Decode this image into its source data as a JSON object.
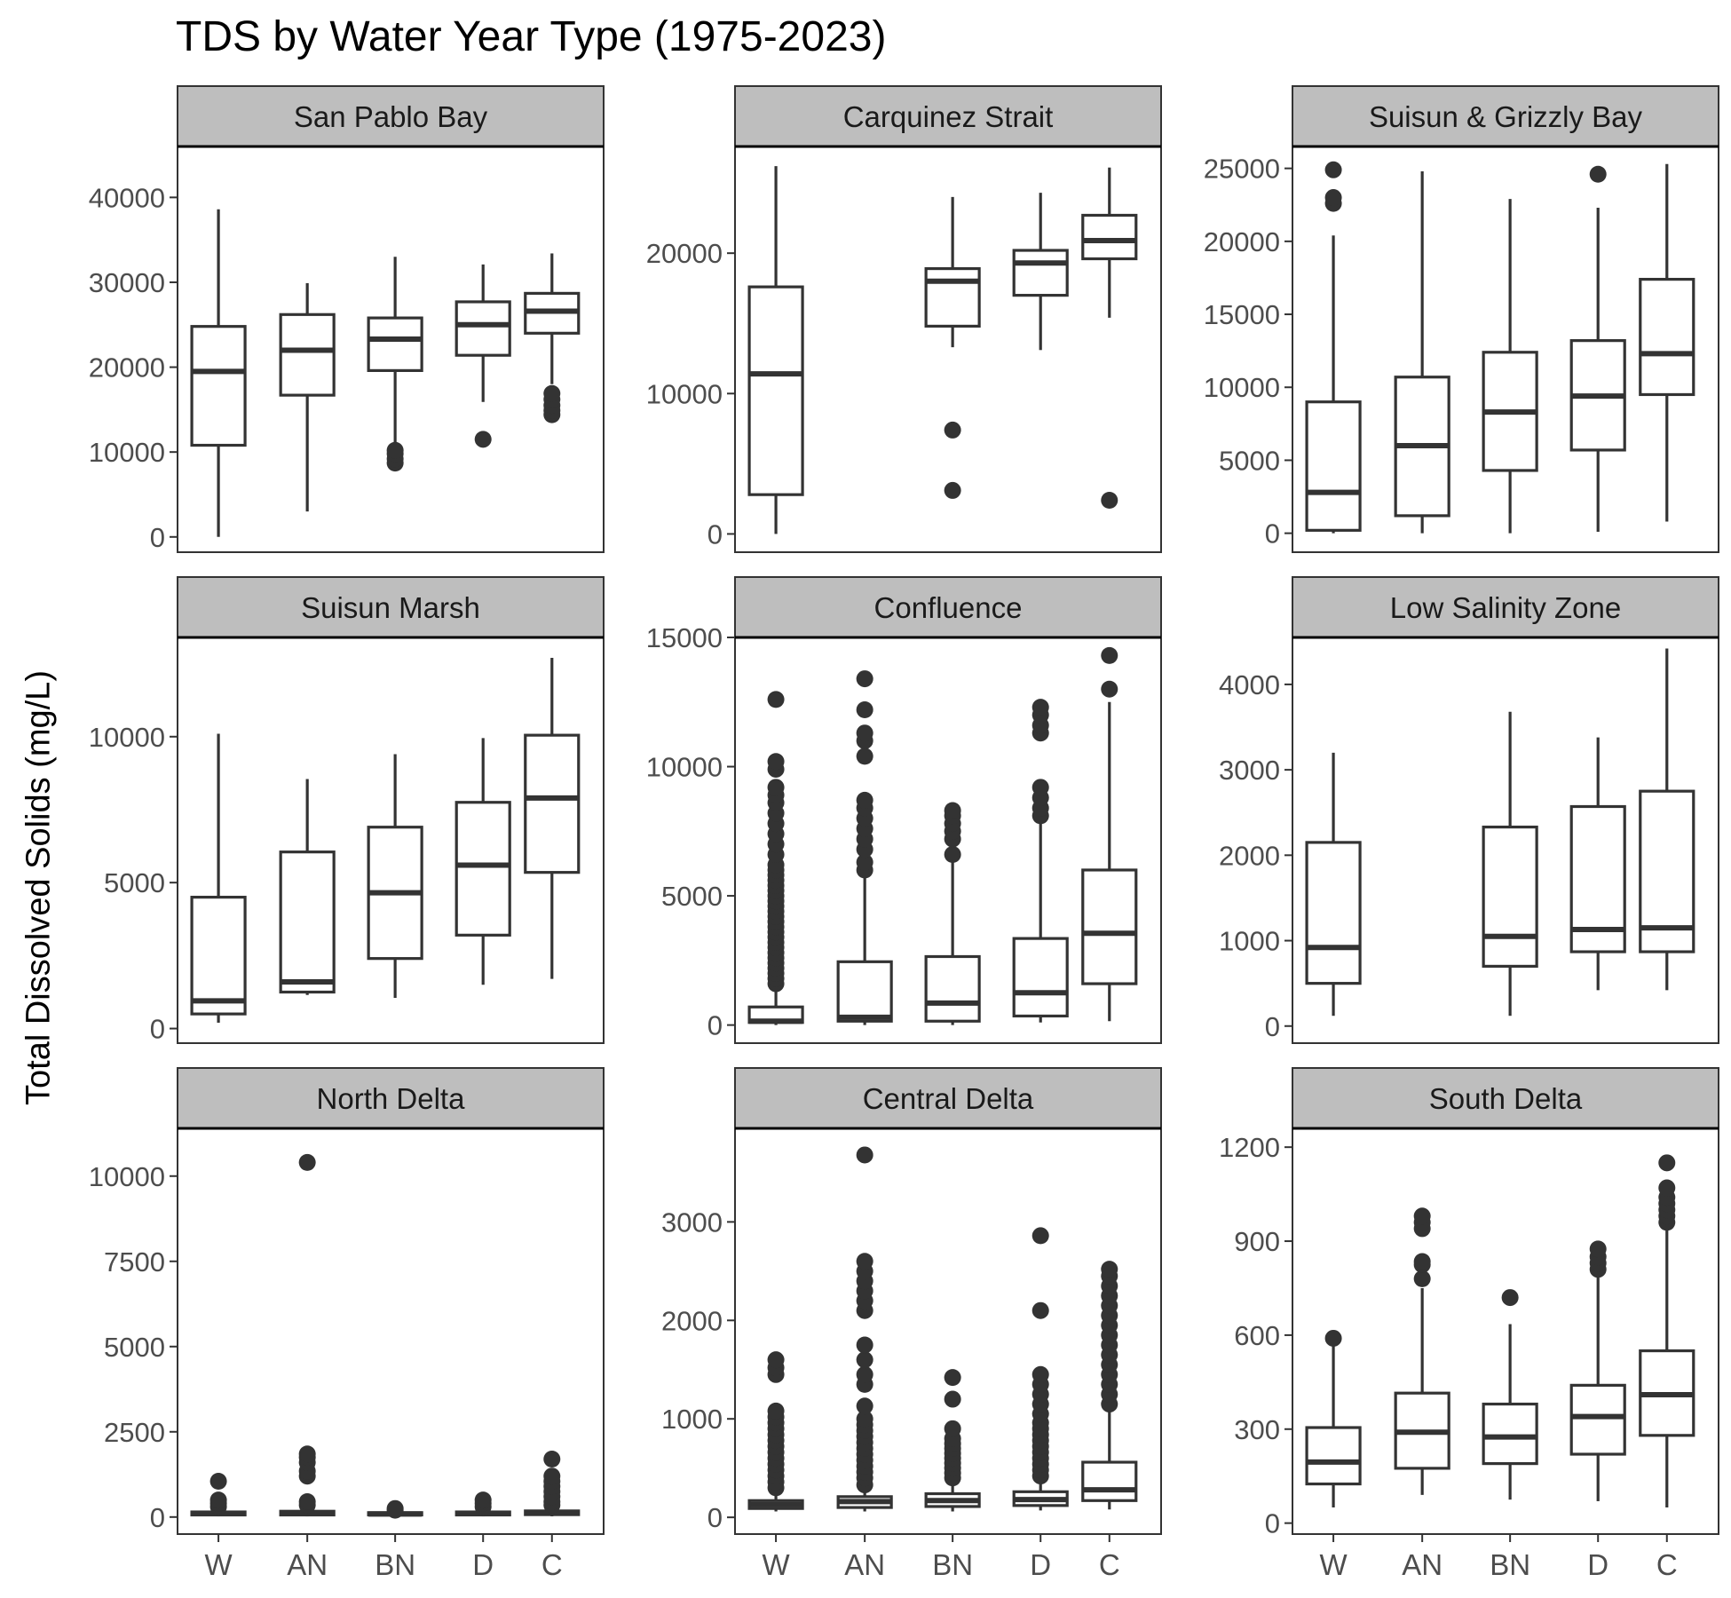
{
  "chart_data": {
    "type": "box",
    "title": "TDS by Water Year Type (1975-2023)",
    "ylabel": "Total Dissolved Solids (mg/L)",
    "xlabel": "",
    "categories": [
      "W",
      "AN",
      "BN",
      "D",
      "C"
    ],
    "grid": false,
    "panels": [
      {
        "name": "San Pablo Bay",
        "ylim": [
          -1800,
          46000
        ],
        "yticks": [
          0,
          10000,
          20000,
          30000,
          40000
        ],
        "ytick_labels": [
          "0",
          "10000",
          "20000",
          "30000",
          "40000"
        ],
        "boxes": [
          {
            "category": "W",
            "min": 0,
            "q1": 10800,
            "median": 19500,
            "q3": 24800,
            "max": 38600,
            "outliers": []
          },
          {
            "category": "AN",
            "min": 3000,
            "q1": 16700,
            "median": 22000,
            "q3": 26200,
            "max": 29900,
            "outliers": []
          },
          {
            "category": "BN",
            "min": 11000,
            "q1": 19600,
            "median": 23300,
            "q3": 25800,
            "max": 33000,
            "outliers": [
              8700,
              9200,
              9800,
              10200
            ]
          },
          {
            "category": "D",
            "min": 15900,
            "q1": 21400,
            "median": 25000,
            "q3": 27700,
            "max": 32100,
            "outliers": [
              11500
            ]
          },
          {
            "category": "C",
            "min": 18000,
            "q1": 24000,
            "median": 26600,
            "q3": 28700,
            "max": 33400,
            "outliers": [
              14400,
              14900,
              15500,
              16200,
              16900
            ]
          }
        ]
      },
      {
        "name": "Carquinez Strait",
        "ylim": [
          -1300,
          27600
        ],
        "yticks": [
          0,
          10000,
          20000
        ],
        "ytick_labels": [
          "0",
          "10000",
          "20000"
        ],
        "boxes": [
          {
            "category": "W",
            "min": 0,
            "q1": 2800,
            "median": 11400,
            "q3": 17600,
            "max": 26200,
            "outliers": []
          },
          {
            "category": "BN",
            "min": 13300,
            "q1": 14800,
            "median": 18000,
            "q3": 18900,
            "max": 24000,
            "outliers": [
              3100,
              7400
            ]
          },
          {
            "category": "D",
            "min": 13100,
            "q1": 17000,
            "median": 19300,
            "q3": 20200,
            "max": 24300,
            "outliers": []
          },
          {
            "category": "C",
            "min": 15400,
            "q1": 19600,
            "median": 20900,
            "q3": 22700,
            "max": 26100,
            "outliers": [
              2400
            ]
          }
        ]
      },
      {
        "name": "Suisun & Grizzly Bay",
        "ylim": [
          -1300,
          26500
        ],
        "yticks": [
          0,
          5000,
          10000,
          15000,
          20000,
          25000
        ],
        "ytick_labels": [
          "0",
          "5000",
          "10000",
          "15000",
          "20000",
          "25000"
        ],
        "boxes": [
          {
            "category": "W",
            "min": 0,
            "q1": 200,
            "median": 2800,
            "q3": 9000,
            "max": 20400,
            "outliers": [
              22600,
              23000,
              24900
            ]
          },
          {
            "category": "AN",
            "min": 0,
            "q1": 1200,
            "median": 6000,
            "q3": 10700,
            "max": 24800,
            "outliers": []
          },
          {
            "category": "BN",
            "min": 0,
            "q1": 4300,
            "median": 8300,
            "q3": 12400,
            "max": 22900,
            "outliers": []
          },
          {
            "category": "D",
            "min": 100,
            "q1": 5700,
            "median": 9400,
            "q3": 13200,
            "max": 22300,
            "outliers": [
              24600
            ]
          },
          {
            "category": "C",
            "min": 800,
            "q1": 9500,
            "median": 12300,
            "q3": 17400,
            "max": 25300,
            "outliers": []
          }
        ]
      },
      {
        "name": "Suisun Marsh",
        "ylim": [
          -500,
          13400
        ],
        "yticks": [
          0,
          5000,
          10000
        ],
        "ytick_labels": [
          "0",
          "5000",
          "10000"
        ],
        "boxes": [
          {
            "category": "W",
            "min": 200,
            "q1": 500,
            "median": 950,
            "q3": 4500,
            "max": 10100,
            "outliers": []
          },
          {
            "category": "AN",
            "min": 1150,
            "q1": 1250,
            "median": 1600,
            "q3": 6050,
            "max": 8550,
            "outliers": []
          },
          {
            "category": "BN",
            "min": 1050,
            "q1": 2400,
            "median": 4650,
            "q3": 6900,
            "max": 9400,
            "outliers": []
          },
          {
            "category": "D",
            "min": 1500,
            "q1": 3200,
            "median": 5600,
            "q3": 7750,
            "max": 9950,
            "outliers": []
          },
          {
            "category": "C",
            "min": 1700,
            "q1": 5350,
            "median": 7900,
            "q3": 10050,
            "max": 12700,
            "outliers": []
          }
        ]
      },
      {
        "name": "Confluence",
        "ylim": [
          -700,
          15000
        ],
        "yticks": [
          0,
          5000,
          10000,
          15000
        ],
        "ytick_labels": [
          "0",
          "5000",
          "10000",
          "15000"
        ],
        "boxes": [
          {
            "category": "W",
            "min": 0,
            "q1": 100,
            "median": 150,
            "q3": 700,
            "max": 1500,
            "outliers": [
              1600,
              1800,
              2000,
              2200,
              2400,
              2600,
              2800,
              3000,
              3200,
              3400,
              3600,
              3800,
              4000,
              4200,
              4400,
              4600,
              4800,
              5000,
              5200,
              5400,
              5600,
              5800,
              6000,
              6200,
              6600,
              7000,
              7400,
              7800,
              8200,
              8600,
              8900,
              9200,
              9900,
              10200,
              12600
            ]
          },
          {
            "category": "AN",
            "min": 0,
            "q1": 150,
            "median": 300,
            "q3": 2450,
            "max": 5800,
            "outliers": [
              6000,
              6300,
              6800,
              7200,
              7600,
              8000,
              8400,
              8700,
              10400,
              11000,
              11300,
              12200,
              13400
            ]
          },
          {
            "category": "BN",
            "min": 0,
            "q1": 150,
            "median": 850,
            "q3": 2650,
            "max": 6500,
            "outliers": [
              6600,
              7200,
              7500,
              7800,
              8100,
              8300
            ]
          },
          {
            "category": "D",
            "min": 100,
            "q1": 350,
            "median": 1250,
            "q3": 3350,
            "max": 7900,
            "outliers": [
              8100,
              8400,
              8800,
              9200,
              11300,
              11600,
              12000,
              12300
            ]
          },
          {
            "category": "C",
            "min": 150,
            "q1": 1600,
            "median": 3550,
            "q3": 6000,
            "max": 12500,
            "outliers": [
              13000,
              14300
            ]
          }
        ]
      },
      {
        "name": "Low Salinity Zone",
        "ylim": [
          -200,
          4550
        ],
        "yticks": [
          0,
          1000,
          2000,
          3000,
          4000
        ],
        "ytick_labels": [
          "0",
          "1000",
          "2000",
          "3000",
          "4000"
        ],
        "boxes": [
          {
            "category": "W",
            "min": 120,
            "q1": 500,
            "median": 920,
            "q3": 2150,
            "max": 3200,
            "outliers": []
          },
          {
            "category": "BN",
            "min": 120,
            "q1": 700,
            "median": 1050,
            "q3": 2330,
            "max": 3680,
            "outliers": []
          },
          {
            "category": "D",
            "min": 420,
            "q1": 870,
            "median": 1130,
            "q3": 2570,
            "max": 3380,
            "outliers": []
          },
          {
            "category": "C",
            "min": 420,
            "q1": 870,
            "median": 1150,
            "q3": 2750,
            "max": 4420,
            "outliers": []
          }
        ]
      },
      {
        "name": "North Delta",
        "ylim": [
          -500,
          11400
        ],
        "yticks": [
          0,
          2500,
          5000,
          7500,
          10000
        ],
        "ytick_labels": [
          "0",
          "2500",
          "5000",
          "7500",
          "10000"
        ],
        "boxes": [
          {
            "category": "W",
            "min": 20,
            "q1": 60,
            "median": 100,
            "q3": 150,
            "max": 250,
            "outliers": [
              300,
              400,
              500,
              1050
            ]
          },
          {
            "category": "AN",
            "min": 20,
            "q1": 60,
            "median": 110,
            "q3": 170,
            "max": 250,
            "outliers": [
              350,
              450,
              1200,
              1350,
              1600,
              1750,
              1850,
              10400
            ]
          },
          {
            "category": "BN",
            "min": 20,
            "q1": 60,
            "median": 90,
            "q3": 130,
            "max": 180,
            "outliers": [
              200,
              250
            ]
          },
          {
            "category": "D",
            "min": 20,
            "q1": 60,
            "median": 100,
            "q3": 150,
            "max": 250,
            "outliers": [
              300,
              400,
              500
            ]
          },
          {
            "category": "C",
            "min": 20,
            "q1": 70,
            "median": 120,
            "q3": 180,
            "max": 300,
            "outliers": [
              350,
              450,
              600,
              750,
              900,
              1050,
              1200,
              1700
            ]
          }
        ]
      },
      {
        "name": "Central Delta",
        "ylim": [
          -170,
          3950
        ],
        "yticks": [
          0,
          1000,
          2000,
          3000
        ],
        "ytick_labels": [
          "0",
          "1000",
          "2000",
          "3000"
        ],
        "boxes": [
          {
            "category": "W",
            "min": 60,
            "q1": 90,
            "median": 130,
            "q3": 170,
            "max": 250,
            "outliers": [
              300,
              360,
              420,
              480,
              540,
              600,
              660,
              720,
              780,
              840,
              900,
              960,
              1020,
              1080,
              1450,
              1520,
              1600
            ]
          },
          {
            "category": "AN",
            "min": 60,
            "q1": 100,
            "median": 160,
            "q3": 210,
            "max": 300,
            "outliers": [
              330,
              400,
              460,
              520,
              580,
              640,
              700,
              760,
              820,
              880,
              940,
              1000,
              1130,
              1350,
              1450,
              1600,
              1750,
              2100,
              2200,
              2300,
              2400,
              2500,
              2600,
              3680
            ]
          },
          {
            "category": "BN",
            "min": 60,
            "q1": 110,
            "median": 170,
            "q3": 240,
            "max": 350,
            "outliers": [
              400,
              450,
              500,
              550,
              600,
              650,
              700,
              750,
              800,
              900,
              1200,
              1420
            ]
          },
          {
            "category": "D",
            "min": 70,
            "q1": 120,
            "median": 180,
            "q3": 260,
            "max": 380,
            "outliers": [
              420,
              480,
              540,
              600,
              660,
              720,
              780,
              840,
              900,
              960,
              1050,
              1150,
              1250,
              1350,
              1450,
              2100,
              2860
            ]
          },
          {
            "category": "C",
            "min": 80,
            "q1": 170,
            "median": 280,
            "q3": 560,
            "max": 1100,
            "outliers": [
              1150,
              1250,
              1350,
              1450,
              1550,
              1650,
              1750,
              1850,
              1950,
              2050,
              2150,
              2250,
              2350,
              2450,
              2520
            ]
          }
        ]
      },
      {
        "name": "South Delta",
        "ylim": [
          -35,
          1260
        ],
        "yticks": [
          0,
          300,
          600,
          900,
          1200
        ],
        "ytick_labels": [
          "0",
          "300",
          "600",
          "900",
          "1200"
        ],
        "boxes": [
          {
            "category": "W",
            "min": 50,
            "q1": 125,
            "median": 195,
            "q3": 305,
            "max": 570,
            "outliers": [
              590
            ]
          },
          {
            "category": "AN",
            "min": 90,
            "q1": 175,
            "median": 290,
            "q3": 415,
            "max": 750,
            "outliers": [
              780,
              825,
              835,
              940,
              960,
              980
            ]
          },
          {
            "category": "BN",
            "min": 75,
            "q1": 190,
            "median": 275,
            "q3": 380,
            "max": 635,
            "outliers": [
              720
            ]
          },
          {
            "category": "D",
            "min": 70,
            "q1": 220,
            "median": 340,
            "q3": 440,
            "max": 790,
            "outliers": [
              810,
              830,
              850,
              875
            ]
          },
          {
            "category": "C",
            "min": 50,
            "q1": 280,
            "median": 410,
            "q3": 550,
            "max": 940,
            "outliers": [
              960,
              980,
              1000,
              1020,
              1040,
              1070,
              1150
            ]
          }
        ]
      }
    ]
  },
  "style": {
    "strip_fill": "#bebebe",
    "box_stroke": "#333333",
    "axis_text_color": "#4d4d4d",
    "panel_border": "#333333"
  }
}
